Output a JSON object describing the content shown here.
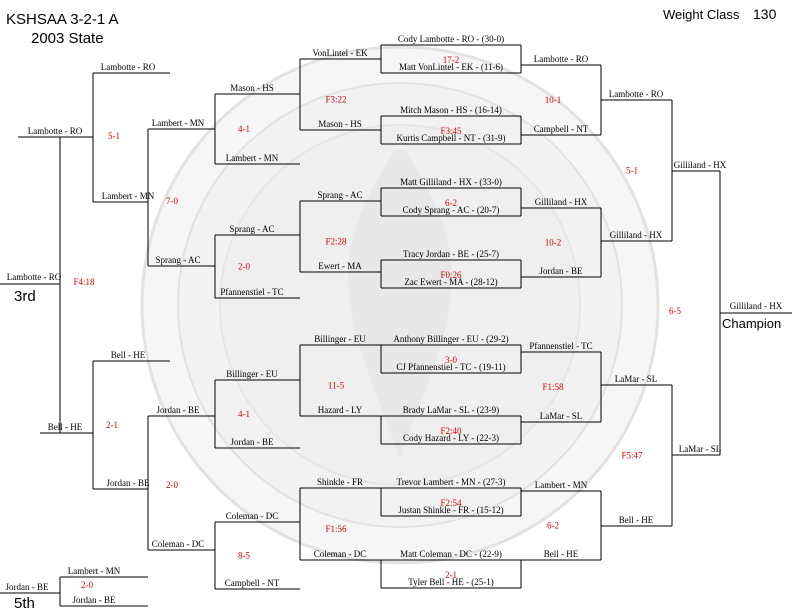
{
  "header": {
    "title": "KSHSAA 3-2-1 A",
    "subtitle": "2003 State",
    "weight_class_label": "Weight Class",
    "weight_class_value": "130"
  },
  "labels": {
    "third": "3rd",
    "fifth": "5th",
    "champion": "Champion"
  },
  "colors": {
    "line": "#000000",
    "name_text": "#000000",
    "score_text": "#d40000",
    "watermark": "#e4e4e4"
  },
  "seeds": [
    {
      "name": "Cody Lambotte - RO - (30-0)"
    },
    {
      "name": "Matt VonLintel - EK - (11-6)"
    },
    {
      "name": "Mitch Mason - HS - (16-14)"
    },
    {
      "name": "Kurtis Campbell - NT - (31-9)"
    },
    {
      "name": "Matt Gilliland - HX - (33-0)"
    },
    {
      "name": "Cody Sprang - AC - (20-7)"
    },
    {
      "name": "Tracy Jordan - BE - (25-7)"
    },
    {
      "name": "Zac Ewert - MA - (28-12)"
    },
    {
      "name": "Anthony Billinger - EU - (29-2)"
    },
    {
      "name": "CJ Pfannenstiel - TC - (19-11)"
    },
    {
      "name": "Brady LaMar - SL - (23-9)"
    },
    {
      "name": "Cody Hazard - LY - (22-3)"
    },
    {
      "name": "Trevor Lambert - MN - (27-3)"
    },
    {
      "name": "Justan Shinkle - FR - (15-12)"
    },
    {
      "name": "Matt Coleman - DC - (22-9)"
    },
    {
      "name": "Tyler Bell - HE - (25-1)"
    }
  ],
  "first_round_scores": [
    "17-2",
    "F3:45",
    "6-2",
    "F0:26",
    "3-0",
    "F2:40",
    "F2:54",
    "2-1"
  ],
  "championship": {
    "quarterfinal": [
      {
        "name": "Lambotte - RO"
      },
      {
        "name": "Campbell - NT"
      },
      {
        "name": "Gilliland - HX"
      },
      {
        "name": "Jordan - BE"
      },
      {
        "name": "Pfannenstiel - TC"
      },
      {
        "name": "LaMar - SL"
      },
      {
        "name": "Lambert - MN"
      },
      {
        "name": "Bell - HE"
      }
    ],
    "quarterfinal_scores": [
      "10-1",
      "10-2",
      "F1:58",
      "6-2"
    ],
    "semifinal": [
      {
        "name": "Lambotte - RO"
      },
      {
        "name": "Gilliland - HX"
      },
      {
        "name": "LaMar - SL"
      },
      {
        "name": "Bell - HE"
      }
    ],
    "semifinal_scores": [
      "5-1",
      "F5:47"
    ],
    "final": [
      {
        "name": "Gilliland - HX"
      },
      {
        "name": "LaMar - SL"
      }
    ],
    "final_score": "6-5",
    "champion": "Gilliland - HX"
  },
  "consolation": {
    "round1": [
      {
        "name": "VonLintel - EK"
      },
      {
        "name": "Mason - HS"
      },
      {
        "name": "Sprang - AC"
      },
      {
        "name": "Ewert - MA"
      },
      {
        "name": "Billinger - EU"
      },
      {
        "name": "Hazard - LY"
      },
      {
        "name": "Shinkle - FR"
      },
      {
        "name": "Coleman - DC"
      }
    ],
    "round1_scores": [
      "F3:22",
      "F2:28",
      "11-5",
      "F1:56"
    ],
    "round2": [
      {
        "name": "Mason - HS"
      },
      {
        "name": "Lambert - MN"
      },
      {
        "name": "Sprang - AC"
      },
      {
        "name": "Pfannenstiel - TC"
      },
      {
        "name": "Billinger - EU"
      },
      {
        "name": "Jordan - BE"
      },
      {
        "name": "Coleman - DC"
      },
      {
        "name": "Campbell - NT"
      }
    ],
    "round2_scores": [
      "4-1",
      "2-0",
      "4-1",
      "8-5"
    ],
    "round3": [
      {
        "name": "Lambert - MN"
      },
      {
        "name": "Sprang - AC"
      },
      {
        "name": "Jordan - BE"
      },
      {
        "name": "Coleman - DC"
      }
    ],
    "round3_scores": [
      "7-0",
      "2-0"
    ],
    "round4": [
      {
        "name": "Lambotte - RO"
      },
      {
        "name": "Lambert - MN"
      },
      {
        "name": "Bell - HE"
      },
      {
        "name": "Jordan - BE"
      }
    ],
    "round4_scores": [
      "5-1",
      "2-1"
    ],
    "round5": [
      {
        "name": "Lambotte - RO"
      },
      {
        "name": "Bell - HE"
      }
    ],
    "third_place_score": "F4:18",
    "third_place": "Lambotte - RO",
    "fifth_place_match": [
      {
        "name": "Lambert - MN"
      },
      {
        "name": "Jordan - BE"
      }
    ],
    "fifth_place_score": "2-0",
    "fifth_place": "Jordan - BE"
  }
}
